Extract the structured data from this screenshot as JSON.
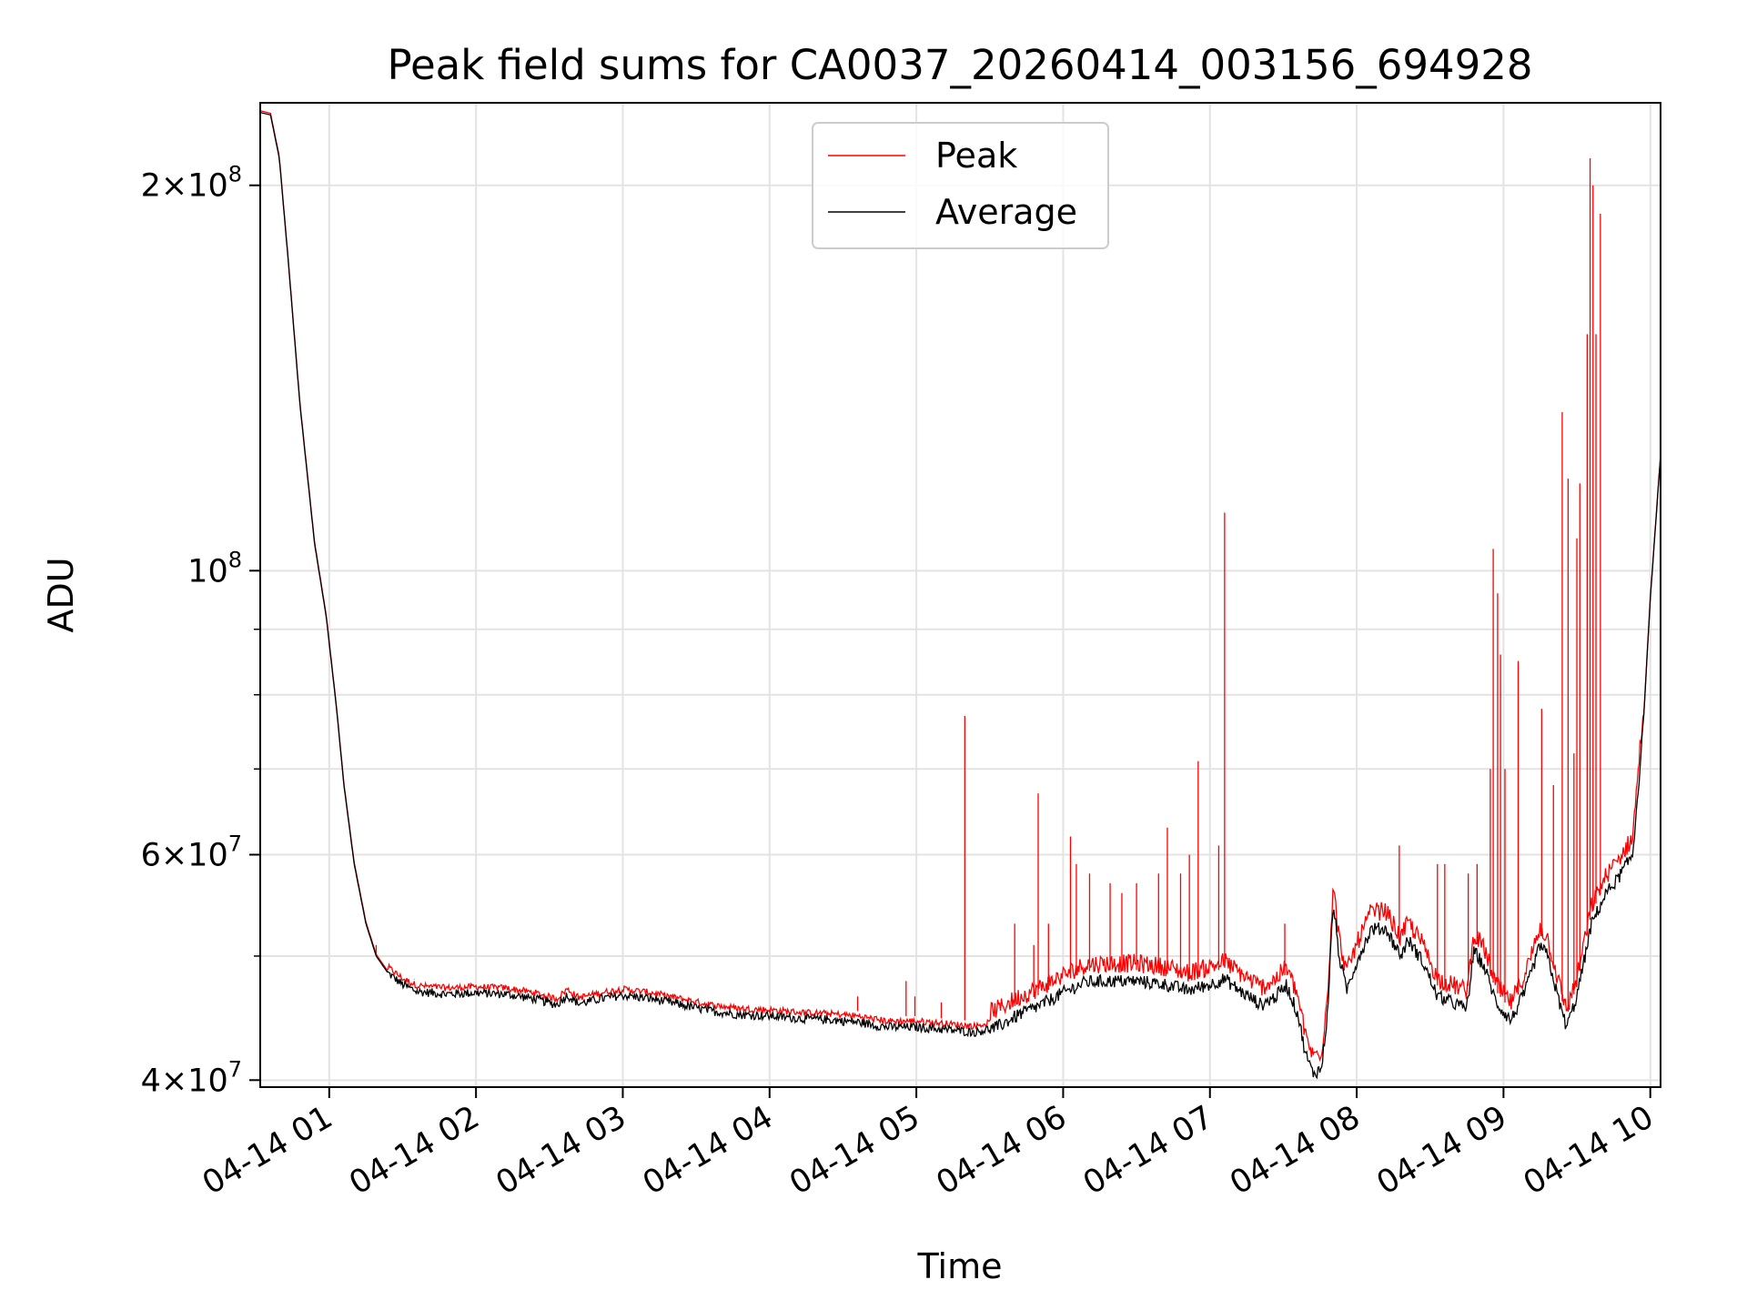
{
  "chart_data": {
    "type": "line",
    "title": "Peak field sums for CA0037_20260414_003156_694928",
    "xlabel": "Time",
    "ylabel": "ADU",
    "yscale": "log",
    "xlim_hours": [
      0.53,
      10.07
    ],
    "ylim": [
      39500000,
      232000000
    ],
    "grid": true,
    "legend_location": "upper center",
    "x_ticks": [
      {
        "hour": 1,
        "label": "04-14 01"
      },
      {
        "hour": 2,
        "label": "04-14 02"
      },
      {
        "hour": 3,
        "label": "04-14 03"
      },
      {
        "hour": 4,
        "label": "04-14 04"
      },
      {
        "hour": 5,
        "label": "04-14 05"
      },
      {
        "hour": 6,
        "label": "04-14 06"
      },
      {
        "hour": 7,
        "label": "04-14 07"
      },
      {
        "hour": 8,
        "label": "04-14 08"
      },
      {
        "hour": 9,
        "label": "04-14 09"
      },
      {
        "hour": 10,
        "label": "04-14 10"
      }
    ],
    "y_major_ticks": [
      {
        "value": 40000000,
        "base": "4",
        "exp": "7"
      },
      {
        "value": 60000000,
        "base": "6",
        "exp": "7"
      },
      {
        "value": 100000000,
        "base": "",
        "exp": "8"
      },
      {
        "value": 200000000,
        "base": "2",
        "exp": "8"
      }
    ],
    "y_minor_ticks": [
      50000000,
      70000000,
      80000000,
      90000000
    ],
    "series": [
      {
        "name": "Peak",
        "color": "#ff0000",
        "spikes": [
          {
            "hour": 1.32,
            "value": 50000000
          },
          {
            "hour": 1.58,
            "value": 48000000
          },
          {
            "hour": 4.6,
            "value": 46500000
          },
          {
            "hour": 4.93,
            "value": 47800000
          },
          {
            "hour": 4.99,
            "value": 46500000
          },
          {
            "hour": 5.17,
            "value": 46000000
          },
          {
            "hour": 5.33,
            "value": 77000000
          },
          {
            "hour": 5.67,
            "value": 53000000
          },
          {
            "hour": 5.8,
            "value": 51000000
          },
          {
            "hour": 5.83,
            "value": 67000000
          },
          {
            "hour": 5.9,
            "value": 53000000
          },
          {
            "hour": 6.05,
            "value": 62000000
          },
          {
            "hour": 6.09,
            "value": 59000000
          },
          {
            "hour": 6.18,
            "value": 58000000
          },
          {
            "hour": 6.32,
            "value": 57000000
          },
          {
            "hour": 6.4,
            "value": 56000000
          },
          {
            "hour": 6.5,
            "value": 57000000
          },
          {
            "hour": 6.65,
            "value": 58000000
          },
          {
            "hour": 6.71,
            "value": 63000000
          },
          {
            "hour": 6.8,
            "value": 58000000
          },
          {
            "hour": 6.86,
            "value": 60000000
          },
          {
            "hour": 6.92,
            "value": 71000000
          },
          {
            "hour": 7.06,
            "value": 61000000
          },
          {
            "hour": 7.1,
            "value": 111000000
          },
          {
            "hour": 7.51,
            "value": 53000000
          },
          {
            "hour": 8.29,
            "value": 61000000
          },
          {
            "hour": 8.55,
            "value": 59000000
          },
          {
            "hour": 8.6,
            "value": 59000000
          },
          {
            "hour": 8.76,
            "value": 58000000
          },
          {
            "hour": 8.82,
            "value": 59000000
          },
          {
            "hour": 8.91,
            "value": 70000000
          },
          {
            "hour": 8.93,
            "value": 104000000
          },
          {
            "hour": 8.96,
            "value": 96000000
          },
          {
            "hour": 8.98,
            "value": 86000000
          },
          {
            "hour": 9.01,
            "value": 70000000
          },
          {
            "hour": 9.1,
            "value": 85000000
          },
          {
            "hour": 9.26,
            "value": 78000000
          },
          {
            "hour": 9.34,
            "value": 68000000
          },
          {
            "hour": 9.4,
            "value": 133000000
          },
          {
            "hour": 9.44,
            "value": 118000000
          },
          {
            "hour": 9.48,
            "value": 72000000
          },
          {
            "hour": 9.5,
            "value": 106000000
          },
          {
            "hour": 9.52,
            "value": 117000000
          },
          {
            "hour": 9.57,
            "value": 153000000
          },
          {
            "hour": 9.59,
            "value": 210000000
          },
          {
            "hour": 9.61,
            "value": 200000000
          },
          {
            "hour": 9.63,
            "value": 153000000
          },
          {
            "hour": 9.66,
            "value": 190000000
          }
        ]
      },
      {
        "name": "Average",
        "color": "#000000",
        "points": [
          [
            0.53,
            228000000
          ],
          [
            0.6,
            227000000
          ],
          [
            0.66,
            210000000
          ],
          [
            0.72,
            175000000
          ],
          [
            0.8,
            135000000
          ],
          [
            0.9,
            105000000
          ],
          [
            0.98,
            92000000
          ],
          [
            1.05,
            78000000
          ],
          [
            1.1,
            68000000
          ],
          [
            1.17,
            59000000
          ],
          [
            1.25,
            53000000
          ],
          [
            1.32,
            50000000
          ],
          [
            1.4,
            48500000
          ],
          [
            1.5,
            47500000
          ],
          [
            1.6,
            46900000
          ],
          [
            1.8,
            46700000
          ],
          [
            2.0,
            46800000
          ],
          [
            2.2,
            46700000
          ],
          [
            2.4,
            46300000
          ],
          [
            2.55,
            45800000
          ],
          [
            2.62,
            46600000
          ],
          [
            2.7,
            45900000
          ],
          [
            2.85,
            46300000
          ],
          [
            3.0,
            46600000
          ],
          [
            3.2,
            46300000
          ],
          [
            3.4,
            45800000
          ],
          [
            3.6,
            45300000
          ],
          [
            3.8,
            45000000
          ],
          [
            4.0,
            44900000
          ],
          [
            4.2,
            44700000
          ],
          [
            4.4,
            44600000
          ],
          [
            4.6,
            44400000
          ],
          [
            4.8,
            44000000
          ],
          [
            5.0,
            44000000
          ],
          [
            5.2,
            43800000
          ],
          [
            5.4,
            43600000
          ],
          [
            5.55,
            44000000
          ],
          [
            5.7,
            45000000
          ],
          [
            5.85,
            45800000
          ],
          [
            6.0,
            46800000
          ],
          [
            6.15,
            47700000
          ],
          [
            6.3,
            47800000
          ],
          [
            6.5,
            47800000
          ],
          [
            6.7,
            47500000
          ],
          [
            6.85,
            47000000
          ],
          [
            7.0,
            47500000
          ],
          [
            7.1,
            48000000
          ],
          [
            7.2,
            47000000
          ],
          [
            7.35,
            45800000
          ],
          [
            7.45,
            46500000
          ],
          [
            7.52,
            47500000
          ],
          [
            7.6,
            45000000
          ],
          [
            7.65,
            42000000
          ],
          [
            7.7,
            40500000
          ],
          [
            7.76,
            40800000
          ],
          [
            7.8,
            45000000
          ],
          [
            7.84,
            55000000
          ],
          [
            7.88,
            50000000
          ],
          [
            7.93,
            47000000
          ],
          [
            8.0,
            49500000
          ],
          [
            8.1,
            52500000
          ],
          [
            8.2,
            52500000
          ],
          [
            8.3,
            50000000
          ],
          [
            8.35,
            51500000
          ],
          [
            8.45,
            49500000
          ],
          [
            8.55,
            46500000
          ],
          [
            8.65,
            46000000
          ],
          [
            8.75,
            45500000
          ],
          [
            8.8,
            50500000
          ],
          [
            8.87,
            49000000
          ],
          [
            8.95,
            46000000
          ],
          [
            9.05,
            44500000
          ],
          [
            9.15,
            47000000
          ],
          [
            9.25,
            51000000
          ],
          [
            9.3,
            50000000
          ],
          [
            9.38,
            46000000
          ],
          [
            9.43,
            44000000
          ],
          [
            9.5,
            46500000
          ],
          [
            9.6,
            53000000
          ],
          [
            9.7,
            56000000
          ],
          [
            9.78,
            57500000
          ],
          [
            9.88,
            60000000
          ],
          [
            9.95,
            75000000
          ],
          [
            10.0,
            95000000
          ],
          [
            10.07,
            123000000
          ]
        ]
      }
    ]
  }
}
